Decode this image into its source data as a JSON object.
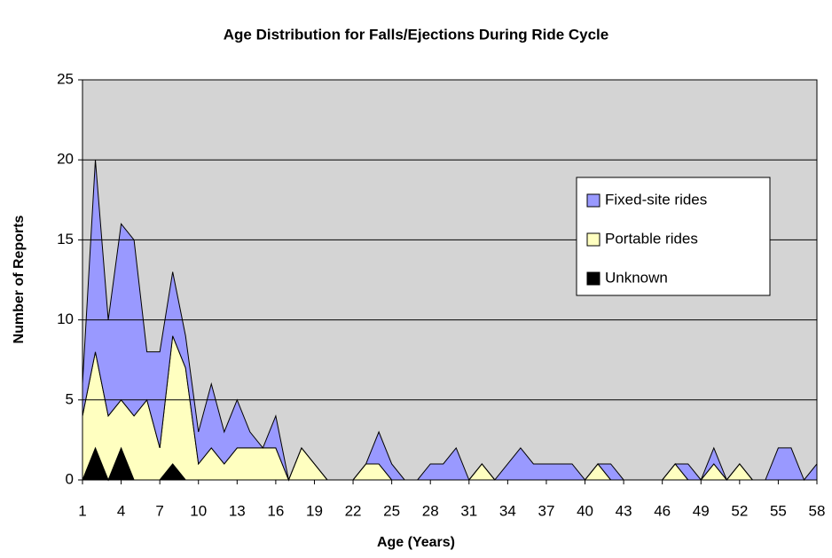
{
  "chart_data": {
    "type": "stacked_area",
    "title": "Age Distribution for Falls/Ejections During Ride Cycle",
    "x_label": "Age (Years)",
    "y_label": "Number of Reports",
    "x": [
      1,
      2,
      3,
      4,
      5,
      6,
      7,
      8,
      9,
      10,
      11,
      12,
      13,
      14,
      15,
      16,
      17,
      18,
      19,
      20,
      21,
      22,
      23,
      24,
      25,
      26,
      27,
      28,
      29,
      30,
      31,
      32,
      33,
      34,
      35,
      36,
      37,
      38,
      39,
      40,
      41,
      42,
      43,
      44,
      45,
      46,
      47,
      48,
      49,
      50,
      51,
      52,
      53,
      54,
      55,
      56,
      57,
      58
    ],
    "xlim": [
      1,
      58
    ],
    "xticks": [
      1,
      4,
      7,
      10,
      13,
      16,
      19,
      22,
      25,
      28,
      31,
      34,
      37,
      40,
      43,
      46,
      49,
      52,
      55,
      58
    ],
    "ylim": [
      0,
      25
    ],
    "yticks": [
      0,
      5,
      10,
      15,
      20,
      25
    ],
    "grid": true,
    "legend": "right",
    "series": [
      {
        "name": "Fixed-site rides",
        "color": "#9999ff",
        "values": [
          2,
          12,
          6,
          11,
          11,
          3,
          6,
          4,
          2,
          2,
          4,
          2,
          3,
          1,
          0,
          2,
          0,
          0,
          0,
          0,
          0,
          0,
          0,
          2,
          1,
          0,
          0,
          1,
          1,
          2,
          0,
          0,
          0,
          1,
          2,
          1,
          1,
          1,
          1,
          0,
          0,
          1,
          0,
          0,
          0,
          0,
          0,
          1,
          0,
          1,
          0,
          0,
          0,
          0,
          2,
          2,
          0,
          1
        ]
      },
      {
        "name": "Portable rides",
        "color": "#ffffc0",
        "values": [
          4,
          6,
          4,
          3,
          4,
          5,
          2,
          8,
          7,
          1,
          2,
          1,
          2,
          2,
          2,
          2,
          0,
          2,
          1,
          0,
          0,
          0,
          1,
          1,
          0,
          0,
          0,
          0,
          0,
          0,
          0,
          1,
          0,
          0,
          0,
          0,
          0,
          0,
          0,
          0,
          1,
          0,
          0,
          0,
          0,
          0,
          1,
          0,
          0,
          1,
          0,
          1,
          0,
          0,
          0,
          0,
          0,
          0
        ]
      },
      {
        "name": "Unknown",
        "color": "#000000",
        "values": [
          0,
          2,
          0,
          2,
          0,
          0,
          0,
          1,
          0,
          0,
          0,
          0,
          0,
          0,
          0,
          0,
          0,
          0,
          0,
          0,
          0,
          0,
          0,
          0,
          0,
          0,
          0,
          0,
          0,
          0,
          0,
          0,
          0,
          0,
          0,
          0,
          0,
          0,
          0,
          0,
          0,
          0,
          0,
          0,
          0,
          0,
          0,
          0,
          0,
          0,
          0,
          0,
          0,
          0,
          0,
          0,
          0,
          0
        ]
      }
    ]
  }
}
